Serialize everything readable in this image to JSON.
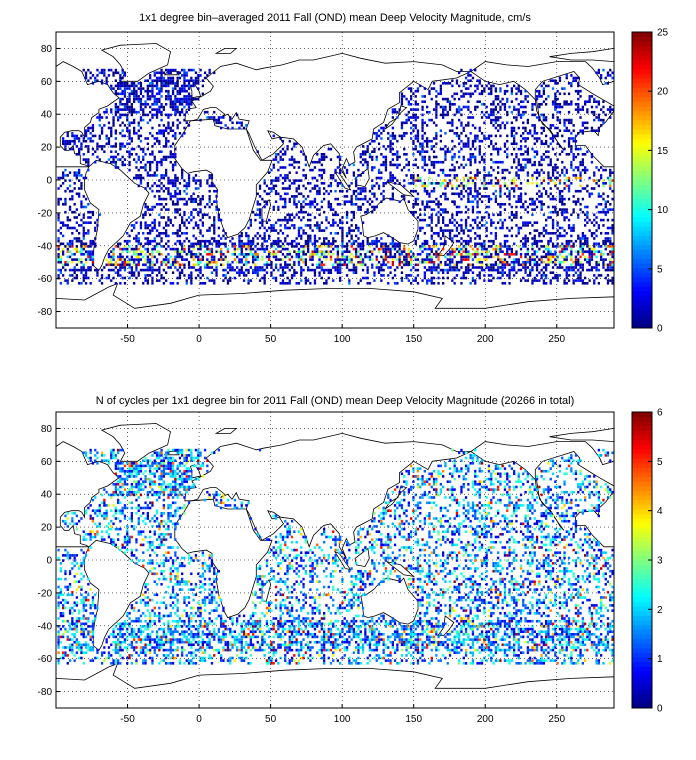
{
  "chart_data": [
    {
      "type": "heatmap",
      "title": "1x1 degree bin–averaged 2011 Fall (OND) mean Deep Velocity Magnitude, cm/s",
      "xlabel": "",
      "ylabel": "",
      "xlim": [
        -100,
        290
      ],
      "ylim": [
        -90,
        90
      ],
      "x_ticks": [
        -50,
        0,
        50,
        100,
        150,
        200,
        250
      ],
      "y_ticks": [
        -80,
        -60,
        -40,
        -20,
        0,
        20,
        40,
        60,
        80
      ],
      "x_tick_labels": [
        "-50",
        "0",
        "50",
        "100",
        "150",
        "200",
        "250"
      ],
      "y_tick_labels": [
        "-80",
        "-60",
        "-40",
        "-20",
        "0",
        "20",
        "40",
        "60",
        "80"
      ],
      "grid": true,
      "colormap": "jet",
      "colorbar": {
        "min": 0,
        "max": 25,
        "ticks": [
          0,
          5,
          10,
          15,
          20,
          25
        ],
        "tick_labels": [
          "0",
          "5",
          "10",
          "15",
          "20",
          "25"
        ]
      }
    },
    {
      "type": "heatmap",
      "title": "N of cycles per 1x1 degree bin for 2011 Fall (OND) mean Deep Velocity Magnitude (20266 in total)",
      "xlabel": "",
      "ylabel": "",
      "xlim": [
        -100,
        290
      ],
      "ylim": [
        -90,
        90
      ],
      "x_ticks": [
        -50,
        0,
        50,
        100,
        150,
        200,
        250
      ],
      "y_ticks": [
        -80,
        -60,
        -40,
        -20,
        0,
        20,
        40,
        60,
        80
      ],
      "x_tick_labels": [
        "-50",
        "0",
        "50",
        "100",
        "150",
        "200",
        "250"
      ],
      "y_tick_labels": [
        "-80",
        "-60",
        "-40",
        "-20",
        "0",
        "20",
        "40",
        "60",
        "80"
      ],
      "grid": true,
      "colormap": "jet",
      "colorbar": {
        "min": 0,
        "max": 6,
        "ticks": [
          0,
          1,
          2,
          3,
          4,
          5,
          6
        ],
        "tick_labels": [
          "0",
          "1",
          "2",
          "3",
          "4",
          "5",
          "6"
        ]
      }
    }
  ]
}
